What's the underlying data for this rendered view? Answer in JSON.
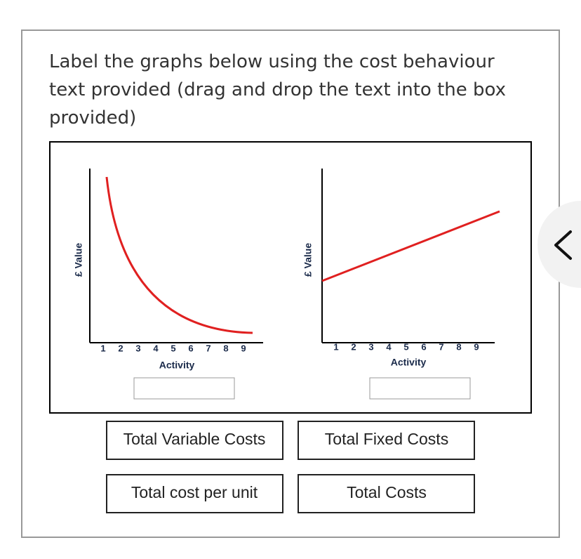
{
  "question": {
    "prompt": [
      "Label the graphs below using the cost behaviour",
      "text provided (drag and drop the text into the box",
      "provided)"
    ]
  },
  "graphs": [
    {
      "y_label": "£ Value",
      "x_label": "Activity",
      "x_ticks": [
        1,
        2,
        3,
        4,
        5,
        6,
        7,
        8,
        9
      ]
    },
    {
      "y_label": "£ Value",
      "x_label": "Activity",
      "x_ticks": [
        1,
        2,
        3,
        4,
        5,
        6,
        7,
        8,
        9
      ]
    }
  ],
  "options": [
    "Total Variable Costs",
    "Total Fixed Costs",
    "Total cost per unit",
    "Total Costs"
  ]
}
